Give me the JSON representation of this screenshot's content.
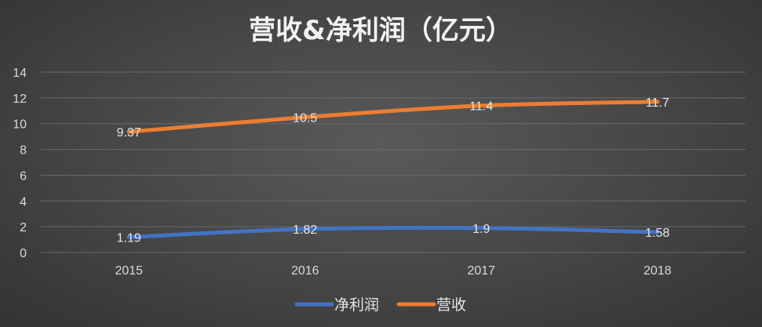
{
  "chart_data": {
    "type": "line",
    "title": "营收&净利润（亿元）",
    "categories": [
      "2015",
      "2016",
      "2017",
      "2018"
    ],
    "ylim": [
      0,
      14
    ],
    "yticks": [
      0,
      2,
      4,
      6,
      8,
      10,
      12,
      14
    ],
    "grid": true,
    "legend_position": "bottom",
    "series": [
      {
        "name": "净利润",
        "values": [
          1.19,
          1.82,
          1.9,
          1.58
        ],
        "labels": [
          "1.19",
          "1.82",
          "1.9",
          "1.58"
        ],
        "color": "#4472c4"
      },
      {
        "name": "营收",
        "values": [
          9.37,
          10.5,
          11.4,
          11.7
        ],
        "labels": [
          "9.37",
          "10.5",
          "11.4",
          "11.7"
        ],
        "color": "#ed7d31"
      }
    ]
  }
}
